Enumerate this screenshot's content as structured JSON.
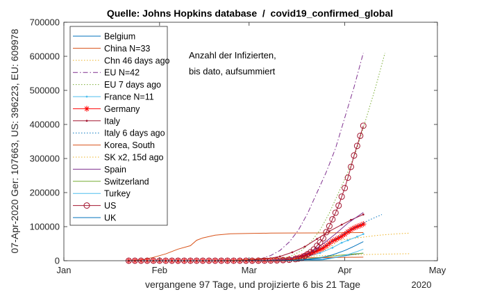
{
  "chart_data": {
    "type": "line",
    "title": "Quelle: Johns Hopkins database  /  covid19_confirmed_global",
    "xlabel": "vergangene 97 Tage, und projizierte 6 bis 21 Tage",
    "ylabel": "07-Apr-2020  Ger: 107663, US: 396223, EU: 609978",
    "year_label": "2020",
    "annotation": [
      "Anzahl der Infizierten,",
      "bis dato, aufsummiert"
    ],
    "x_ticks": [
      "Jan",
      "Feb",
      "Mar",
      "Apr",
      "May"
    ],
    "y_ticks": [
      "0",
      "100000",
      "200000",
      "300000",
      "400000",
      "500000",
      "600000",
      "700000"
    ],
    "xlim": [
      "2020-01-01",
      "2020-05-01"
    ],
    "ylim": [
      0,
      700000
    ],
    "grid": false,
    "legend_position": "top-left",
    "series": [
      {
        "name": "Belgium",
        "color": "#0072BD",
        "style": "solid",
        "marker": "none",
        "x": [
          "2020-01-22",
          "2020-03-01",
          "2020-03-10",
          "2020-03-15",
          "2020-03-20",
          "2020-03-25",
          "2020-03-30",
          "2020-04-04",
          "2020-04-07"
        ],
        "y": [
          0,
          0,
          300,
          900,
          2800,
          5000,
          11900,
          18500,
          22200
        ]
      },
      {
        "name": "China N=33",
        "color": "#D95319",
        "style": "solid",
        "marker": "none",
        "x": [
          "2020-01-22",
          "2020-01-26",
          "2020-01-30",
          "2020-02-03",
          "2020-02-07",
          "2020-02-11",
          "2020-02-13",
          "2020-02-15",
          "2020-02-19",
          "2020-02-24",
          "2020-03-01",
          "2020-03-08",
          "2020-03-15",
          "2020-03-25",
          "2020-04-07"
        ],
        "y": [
          550,
          2100,
          9700,
          20000,
          34000,
          44000,
          60000,
          67000,
          75000,
          79000,
          80000,
          81000,
          81400,
          81700,
          82600
        ]
      },
      {
        "name": "Chn 46 days ago",
        "color": "#EDB120",
        "style": "dotted",
        "marker": "none",
        "x": [
          "2020-03-08",
          "2020-03-13",
          "2020-03-18",
          "2020-03-22",
          "2020-03-26",
          "2020-03-28",
          "2020-03-30",
          "2020-04-05",
          "2020-04-12",
          "2020-04-18",
          "2020-04-22"
        ],
        "y": [
          550,
          2100,
          9700,
          20000,
          34000,
          44000,
          60000,
          67000,
          75000,
          79000,
          81000
        ]
      },
      {
        "name": "EU N=42",
        "color": "#7E2F8E",
        "style": "dashdot",
        "marker": "none",
        "x": [
          "2020-01-22",
          "2020-02-20",
          "2020-02-25",
          "2020-03-01",
          "2020-03-05",
          "2020-03-08",
          "2020-03-11",
          "2020-03-14",
          "2020-03-17",
          "2020-03-20",
          "2020-03-23",
          "2020-03-26",
          "2020-03-29",
          "2020-04-01",
          "2020-04-04",
          "2020-04-07"
        ],
        "y": [
          0,
          0,
          500,
          2500,
          6500,
          15000,
          30000,
          55000,
          90000,
          140000,
          200000,
          260000,
          330000,
          420000,
          510000,
          610000
        ]
      },
      {
        "name": "EU 7 days ago",
        "color": "#77AC30",
        "style": "dotted",
        "marker": "none",
        "x": [
          "2020-01-29",
          "2020-02-27",
          "2020-03-03",
          "2020-03-08",
          "2020-03-12",
          "2020-03-15",
          "2020-03-18",
          "2020-03-21",
          "2020-03-24",
          "2020-03-27",
          "2020-03-30",
          "2020-04-02",
          "2020-04-05",
          "2020-04-08",
          "2020-04-11",
          "2020-04-14"
        ],
        "y": [
          0,
          0,
          500,
          2500,
          6500,
          15000,
          30000,
          55000,
          90000,
          140000,
          200000,
          260000,
          330000,
          420000,
          510000,
          610000
        ]
      },
      {
        "name": "France N=11",
        "color": "#4DBEEE",
        "style": "solid",
        "marker": "dot",
        "x": [
          "2020-01-22",
          "2020-03-01",
          "2020-03-08",
          "2020-03-12",
          "2020-03-16",
          "2020-03-20",
          "2020-03-24",
          "2020-03-28",
          "2020-03-31",
          "2020-04-02",
          "2020-04-05",
          "2020-04-07"
        ],
        "y": [
          0,
          100,
          1100,
          3700,
          7700,
          12700,
          22600,
          38100,
          52800,
          59900,
          70500,
          78200
        ]
      },
      {
        "name": "Germany",
        "color": "#FF0000",
        "style": "solid",
        "marker": "asterisk",
        "x": [
          "2020-01-22",
          "2020-01-24",
          "2020-01-26",
          "2020-01-28",
          "2020-01-30",
          "2020-02-01",
          "2020-02-03",
          "2020-02-05",
          "2020-02-07",
          "2020-02-09",
          "2020-02-11",
          "2020-02-13",
          "2020-02-15",
          "2020-02-17",
          "2020-02-19",
          "2020-02-21",
          "2020-02-23",
          "2020-02-25",
          "2020-02-27",
          "2020-02-29",
          "2020-03-02",
          "2020-03-04",
          "2020-03-06",
          "2020-03-08",
          "2020-03-10",
          "2020-03-12",
          "2020-03-14",
          "2020-03-16",
          "2020-03-17",
          "2020-03-18",
          "2020-03-19",
          "2020-03-20",
          "2020-03-21",
          "2020-03-22",
          "2020-03-23",
          "2020-03-24",
          "2020-03-25",
          "2020-03-26",
          "2020-03-27",
          "2020-03-28",
          "2020-03-29",
          "2020-03-30",
          "2020-03-31",
          "2020-04-01",
          "2020-04-02",
          "2020-04-03",
          "2020-04-04",
          "2020-04-05",
          "2020-04-06",
          "2020-04-07"
        ],
        "y": [
          0,
          0,
          0,
          4,
          5,
          8,
          12,
          12,
          13,
          14,
          16,
          16,
          16,
          16,
          16,
          16,
          16,
          17,
          46,
          79,
          159,
          262,
          670,
          1040,
          1460,
          2750,
          4590,
          7270,
          9260,
          12330,
          15320,
          19850,
          22210,
          24870,
          29060,
          32990,
          37320,
          43940,
          50870,
          57690,
          62090,
          66890,
          71690,
          77980,
          84790,
          91160,
          96090,
          100120,
          103370,
          107660
        ]
      },
      {
        "name": "Italy",
        "color": "#A2142F",
        "style": "solid",
        "marker": "dot",
        "x": [
          "2020-01-22",
          "2020-02-20",
          "2020-02-24",
          "2020-02-28",
          "2020-03-03",
          "2020-03-07",
          "2020-03-11",
          "2020-03-15",
          "2020-03-19",
          "2020-03-23",
          "2020-03-27",
          "2020-03-31",
          "2020-04-03",
          "2020-04-07"
        ],
        "y": [
          0,
          3,
          230,
          890,
          2500,
          5900,
          12500,
          24700,
          41000,
          63900,
          86500,
          105800,
          119800,
          135600
        ]
      },
      {
        "name": "Italy 6 days ago",
        "color": "#0072BD",
        "style": "dotted",
        "marker": "none",
        "x": [
          "2020-01-28",
          "2020-02-26",
          "2020-03-01",
          "2020-03-05",
          "2020-03-09",
          "2020-03-13",
          "2020-03-17",
          "2020-03-21",
          "2020-03-25",
          "2020-03-29",
          "2020-04-02",
          "2020-04-06",
          "2020-04-09",
          "2020-04-13"
        ],
        "y": [
          0,
          3,
          230,
          890,
          2500,
          5900,
          12500,
          24700,
          41000,
          63900,
          86500,
          105800,
          119800,
          135600
        ]
      },
      {
        "name": "Korea, South",
        "color": "#D95319",
        "style": "solid",
        "marker": "none",
        "x": [
          "2020-01-22",
          "2020-02-18",
          "2020-02-22",
          "2020-02-26",
          "2020-03-01",
          "2020-03-05",
          "2020-03-09",
          "2020-03-15",
          "2020-03-22",
          "2020-03-30",
          "2020-04-07"
        ],
        "y": [
          1,
          31,
          430,
          1260,
          3740,
          6080,
          7380,
          8160,
          8900,
          9660,
          10330
        ]
      },
      {
        "name": "SK x2, 15d ago",
        "color": "#EDB120",
        "style": "dotted",
        "marker": "none",
        "x": [
          "2020-02-06",
          "2020-03-04",
          "2020-03-08",
          "2020-03-12",
          "2020-03-16",
          "2020-03-20",
          "2020-03-24",
          "2020-03-30",
          "2020-04-06",
          "2020-04-14",
          "2020-04-22"
        ],
        "y": [
          2,
          62,
          860,
          2520,
          7480,
          12160,
          14760,
          16320,
          17800,
          19320,
          20660
        ]
      },
      {
        "name": "Spain",
        "color": "#7E2F8E",
        "style": "solid",
        "marker": "none",
        "x": [
          "2020-01-22",
          "2020-02-25",
          "2020-03-01",
          "2020-03-05",
          "2020-03-09",
          "2020-03-13",
          "2020-03-17",
          "2020-03-21",
          "2020-03-25",
          "2020-03-29",
          "2020-04-02",
          "2020-04-07"
        ],
        "y": [
          0,
          6,
          84,
          260,
          1200,
          5200,
          11700,
          25400,
          49500,
          78800,
          110200,
          141900
        ]
      },
      {
        "name": "Switzerland",
        "color": "#77AC30",
        "style": "solid",
        "marker": "none",
        "x": [
          "2020-01-22",
          "2020-02-25",
          "2020-03-05",
          "2020-03-10",
          "2020-03-15",
          "2020-03-20",
          "2020-03-25",
          "2020-03-30",
          "2020-04-07"
        ],
        "y": [
          0,
          1,
          90,
          500,
          2200,
          5300,
          10900,
          15900,
          22200
        ]
      },
      {
        "name": "Turkey",
        "color": "#4DBEEE",
        "style": "solid",
        "marker": "none",
        "x": [
          "2020-01-22",
          "2020-03-10",
          "2020-03-15",
          "2020-03-20",
          "2020-03-25",
          "2020-03-29",
          "2020-04-02",
          "2020-04-05",
          "2020-04-07"
        ],
        "y": [
          0,
          0,
          6,
          360,
          2400,
          9200,
          18100,
          27000,
          34100
        ]
      },
      {
        "name": "US",
        "color": "#A2142F",
        "style": "solid",
        "marker": "circle",
        "x": [
          "2020-01-22",
          "2020-01-24",
          "2020-01-26",
          "2020-01-28",
          "2020-01-30",
          "2020-02-01",
          "2020-02-03",
          "2020-02-05",
          "2020-02-07",
          "2020-02-09",
          "2020-02-11",
          "2020-02-13",
          "2020-02-15",
          "2020-02-17",
          "2020-02-19",
          "2020-02-21",
          "2020-02-23",
          "2020-02-25",
          "2020-02-27",
          "2020-02-29",
          "2020-03-02",
          "2020-03-04",
          "2020-03-06",
          "2020-03-08",
          "2020-03-10",
          "2020-03-12",
          "2020-03-14",
          "2020-03-16",
          "2020-03-17",
          "2020-03-18",
          "2020-03-19",
          "2020-03-20",
          "2020-03-21",
          "2020-03-22",
          "2020-03-23",
          "2020-03-24",
          "2020-03-25",
          "2020-03-26",
          "2020-03-27",
          "2020-03-28",
          "2020-03-29",
          "2020-03-30",
          "2020-03-31",
          "2020-04-01",
          "2020-04-02",
          "2020-04-03",
          "2020-04-04",
          "2020-04-05",
          "2020-04-06",
          "2020-04-07"
        ],
        "y": [
          1,
          2,
          5,
          5,
          6,
          8,
          11,
          12,
          12,
          12,
          13,
          15,
          15,
          15,
          15,
          15,
          15,
          57,
          60,
          68,
          100,
          150,
          320,
          540,
          990,
          1660,
          2730,
          4630,
          6420,
          7790,
          13680,
          19610,
          25490,
          33270,
          43850,
          53740,
          65780,
          83840,
          101660,
          121480,
          140900,
          161830,
          188170,
          213370,
          243620,
          275590,
          308850,
          337070,
          366670,
          396220
        ]
      },
      {
        "name": "UK",
        "color": "#0072BD",
        "style": "solid",
        "marker": "none",
        "x": [
          "2020-01-22",
          "2020-02-01",
          "2020-03-01",
          "2020-03-06",
          "2020-03-11",
          "2020-03-16",
          "2020-03-20",
          "2020-03-24",
          "2020-03-28",
          "2020-04-01",
          "2020-04-04",
          "2020-04-07"
        ],
        "y": [
          0,
          2,
          36,
          165,
          460,
          1550,
          4000,
          8100,
          17100,
          29900,
          42400,
          55900
        ]
      }
    ]
  }
}
